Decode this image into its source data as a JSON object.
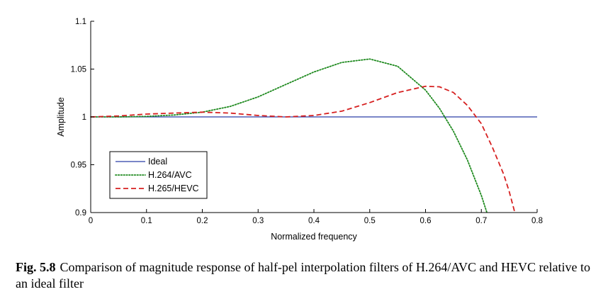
{
  "chart_data": {
    "type": "line",
    "xlabel": "Normalized frequency",
    "ylabel": "Amplitude",
    "xlim": [
      0,
      0.8
    ],
    "ylim": [
      0.9,
      1.1
    ],
    "xticks": [
      "0",
      "0.1",
      "0.2",
      "0.3",
      "0.4",
      "0.5",
      "0.6",
      "0.7",
      "0.8"
    ],
    "yticks": [
      "0.9",
      "0.95",
      "1",
      "1.05",
      "1.1"
    ],
    "legend_position": "bottom-left",
    "series": [
      {
        "name": "Ideal",
        "color": "#2b3fa8",
        "style": "solid",
        "x": [
          0,
          0.8
        ],
        "y": [
          1.0,
          1.0
        ]
      },
      {
        "name": "H.264/AVC",
        "color": "#1f8a1f",
        "style": "dotted",
        "x": [
          0,
          0.05,
          0.1,
          0.15,
          0.2,
          0.25,
          0.3,
          0.35,
          0.4,
          0.45,
          0.5,
          0.55,
          0.6,
          0.625,
          0.65,
          0.675,
          0.7,
          0.71
        ],
        "y": [
          1.0,
          1.0,
          1.0005,
          1.002,
          1.005,
          1.011,
          1.021,
          1.034,
          1.047,
          1.057,
          1.0605,
          1.053,
          1.028,
          1.009,
          0.985,
          0.955,
          0.918,
          0.9
        ]
      },
      {
        "name": "H.265/HEVC",
        "color": "#d62020",
        "style": "dashed",
        "x": [
          0,
          0.05,
          0.1,
          0.15,
          0.2,
          0.25,
          0.3,
          0.35,
          0.4,
          0.45,
          0.5,
          0.55,
          0.6,
          0.625,
          0.65,
          0.675,
          0.7,
          0.72,
          0.74,
          0.75,
          0.76
        ],
        "y": [
          1.0,
          1.001,
          1.003,
          1.004,
          1.005,
          1.004,
          1.0015,
          1.0,
          1.0015,
          1.006,
          1.015,
          1.0255,
          1.032,
          1.0315,
          1.0255,
          1.012,
          0.993,
          0.968,
          0.94,
          0.922,
          0.9
        ]
      }
    ]
  },
  "caption": {
    "label": "Fig. 5.8",
    "text": "Comparison of magnitude response of half-pel interpolation filters of H.264/AVC and HEVC relative to an ideal filter"
  }
}
